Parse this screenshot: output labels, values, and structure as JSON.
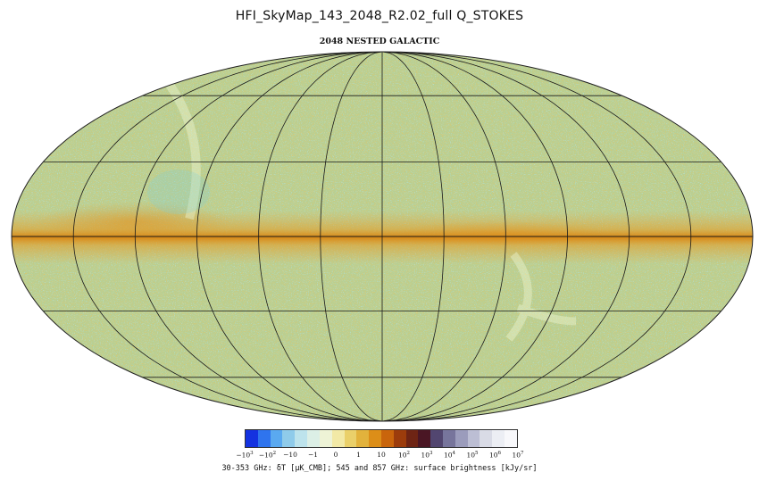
{
  "title": "HFI_SkyMap_143_2048_R2.02_full   Q_STOKES",
  "subtitle": "2048 NESTED GALACTIC",
  "projection": "mollweide",
  "graticule": {
    "longitude_step_deg": 30,
    "latitude_step_deg": 30
  },
  "colors": {
    "map_base": "#b9cf92",
    "plane": "#e49a20",
    "cold": "#7fcfd8",
    "grid": "#1a1a1a"
  },
  "colorbar": {
    "colors": [
      "#1432e0",
      "#2f74ee",
      "#5aa9f0",
      "#8fcbea",
      "#bde3ec",
      "#dcefe6",
      "#eef3d6",
      "#f2e9a6",
      "#ead06a",
      "#e2b23c",
      "#dc8e18",
      "#c9650c",
      "#9c3c0c",
      "#6e2414",
      "#4a1624",
      "#524670",
      "#77759c",
      "#9b9cbc",
      "#bcbed4",
      "#d9dbe6",
      "#eceef4",
      "#f8f8fb"
    ],
    "ticks": [
      {
        "base": "−10",
        "exp": "3"
      },
      {
        "base": "−10",
        "exp": "2"
      },
      {
        "base": "−10",
        "exp": ""
      },
      {
        "base": "−1",
        "exp": ""
      },
      {
        "base": "0",
        "exp": ""
      },
      {
        "base": "1",
        "exp": ""
      },
      {
        "base": "10",
        "exp": ""
      },
      {
        "base": "10",
        "exp": "2"
      },
      {
        "base": "10",
        "exp": "3"
      },
      {
        "base": "10",
        "exp": "4"
      },
      {
        "base": "10",
        "exp": "5"
      },
      {
        "base": "10",
        "exp": "6"
      },
      {
        "base": "10",
        "exp": "7"
      }
    ]
  },
  "units_label": "30-353 GHz: δT [μK_CMB]; 545 and 857 GHz: surface brightness [kJy/sr]"
}
